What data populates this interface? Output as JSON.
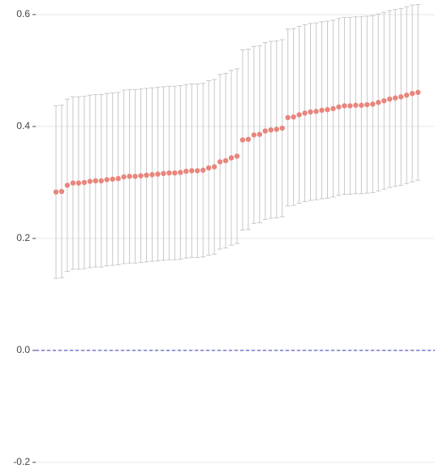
{
  "chart_data": {
    "type": "errorbar",
    "categories": [
      null,
      null,
      null,
      null,
      null,
      null,
      null,
      null,
      null,
      null,
      null,
      null,
      null,
      null,
      null,
      null,
      null,
      null,
      null,
      null,
      null,
      null,
      null,
      null,
      null,
      null,
      null,
      null,
      null,
      null,
      null,
      null,
      null,
      null,
      null,
      null,
      null,
      null,
      null,
      null,
      null,
      null,
      null,
      null,
      null,
      null,
      null,
      null,
      null,
      null,
      null,
      null,
      null,
      null,
      null,
      null,
      null,
      null,
      null,
      null,
      null,
      null,
      null,
      null,
      null
    ],
    "values": [
      0.283,
      0.284,
      0.295,
      0.299,
      0.299,
      0.3,
      0.302,
      0.303,
      0.303,
      0.305,
      0.306,
      0.307,
      0.31,
      0.311,
      0.311,
      0.312,
      0.313,
      0.314,
      0.315,
      0.316,
      0.317,
      0.317,
      0.318,
      0.32,
      0.321,
      0.321,
      0.322,
      0.326,
      0.328,
      0.337,
      0.339,
      0.344,
      0.347,
      0.376,
      0.377,
      0.385,
      0.386,
      0.392,
      0.394,
      0.395,
      0.397,
      0.416,
      0.417,
      0.421,
      0.424,
      0.426,
      0.427,
      0.429,
      0.43,
      0.432,
      0.435,
      0.437,
      0.437,
      0.438,
      0.438,
      0.439,
      0.44,
      0.443,
      0.446,
      0.449,
      0.451,
      0.453,
      0.456,
      0.459,
      0.461
    ],
    "errors": [
      0.154,
      0.154,
      0.154,
      0.154,
      0.154,
      0.154,
      0.154,
      0.154,
      0.154,
      0.154,
      0.154,
      0.154,
      0.155,
      0.155,
      0.155,
      0.155,
      0.155,
      0.155,
      0.155,
      0.155,
      0.155,
      0.155,
      0.155,
      0.155,
      0.155,
      0.155,
      0.155,
      0.156,
      0.156,
      0.156,
      0.156,
      0.156,
      0.156,
      0.161,
      0.161,
      0.158,
      0.158,
      0.158,
      0.158,
      0.158,
      0.158,
      0.158,
      0.158,
      0.158,
      0.158,
      0.158,
      0.158,
      0.158,
      0.158,
      0.158,
      0.158,
      0.158,
      0.158,
      0.158,
      0.158,
      0.158,
      0.158,
      0.158,
      0.158,
      0.158,
      0.158,
      0.158,
      0.158,
      0.158,
      0.157
    ],
    "color": "#e8857c",
    "error_color": "#c8c8c8",
    "ylim": [
      -0.219,
      0.626
    ],
    "yticks": [
      -0.2,
      0.2,
      0.4,
      0.6,
      {
        "value": 0,
        "label": "0.0"
      }
    ],
    "reference_line": 0,
    "reference_color": "#5b5bc8",
    "grid": true
  }
}
